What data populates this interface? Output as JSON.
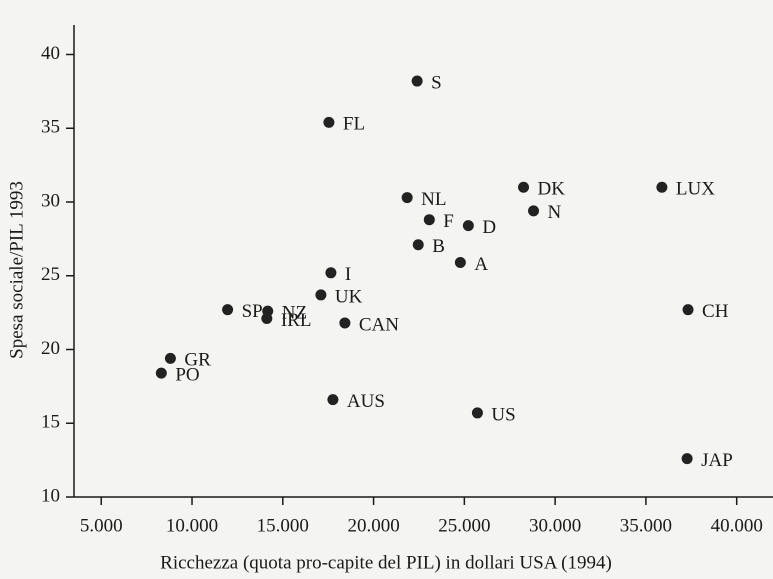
{
  "chart_data": {
    "type": "scatter",
    "x_label": "Ricchezza (quota pro-capite del PIL) in dollari USA (1994)",
    "y_label": "Spesa sociale/PIL 1993",
    "labels": [
      "S",
      "FL",
      "NL",
      "DK",
      "LUX",
      "N",
      "F",
      "D",
      "B",
      "A",
      "I",
      "UK",
      "SP",
      "NZ",
      "IRL",
      "CAN",
      "CH",
      "GR",
      "PO",
      "AUS",
      "US",
      "JAP"
    ],
    "x": [
      22400,
      17540,
      21850,
      28260,
      35880,
      28810,
      23070,
      25220,
      22460,
      24780,
      17650,
      17100,
      11960,
      14170,
      14120,
      18420,
      37320,
      8810,
      8310,
      17760,
      25720,
      37270
    ],
    "y": [
      38.2,
      35.4,
      30.3,
      31.0,
      31.0,
      29.4,
      28.8,
      28.4,
      27.1,
      25.9,
      25.2,
      23.7,
      22.7,
      22.6,
      22.1,
      21.8,
      22.7,
      19.4,
      18.4,
      16.6,
      15.7,
      12.6
    ],
    "color": "#222222",
    "xlim": [
      3500,
      42000
    ],
    "ylim": [
      10,
      42
    ],
    "xticks": [
      {
        "value": 5000,
        "label": "5.000"
      },
      {
        "value": 10000,
        "label": "10.000"
      },
      {
        "value": 15000,
        "label": "15.000"
      },
      {
        "value": 20000,
        "label": "20.000"
      },
      {
        "value": 25000,
        "label": "25.000"
      },
      {
        "value": 30000,
        "label": "30.000"
      },
      {
        "value": 35000,
        "label": "35.000"
      },
      {
        "value": 40000,
        "label": "40.000"
      }
    ],
    "yticks": [
      10,
      15,
      20,
      25,
      30,
      35,
      40
    ],
    "grid": false
  }
}
